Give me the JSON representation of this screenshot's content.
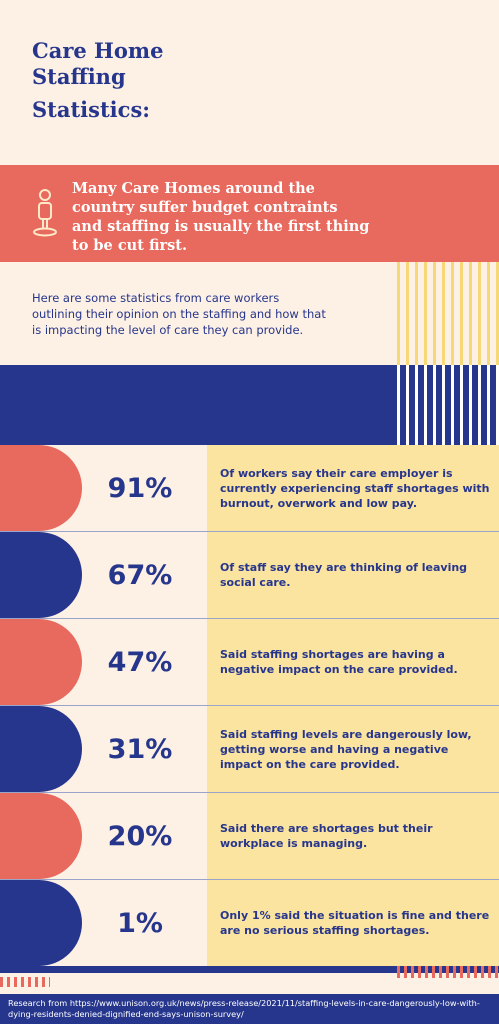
{
  "title": {
    "line1": "Care Home",
    "line2": "Staffing",
    "line3": "Statistics:"
  },
  "banner": {
    "icon": "person-icon",
    "text": "Many Care Homes around the country suffer budget contraints and staffing is usually the first thing to be cut first."
  },
  "intro": "Here are some statistics from care workers outlining their opinion on the staffing and how that is impacting the level of care they can provide.",
  "stats": [
    {
      "pct": "91%",
      "text": "Of workers say their care employer is currently experiencing staff shortages with burnout, overwork and low pay.",
      "color": "#e8695d"
    },
    {
      "pct": "67%",
      "text": "Of staff say they are thinking of leaving social care.",
      "color": "#26368c"
    },
    {
      "pct": "47%",
      "text": "Said staffing shortages are having a negative impact on the care provided.",
      "color": "#e8695d"
    },
    {
      "pct": "31%",
      "text": "Said staffing levels are dangerously low, getting worse and having a negative impact on the care provided.",
      "color": "#26368c"
    },
    {
      "pct": "20%",
      "text": "Said there are shortages but their workplace is managing.",
      "color": "#e8695d"
    },
    {
      "pct": "1%",
      "text": "Only 1% said the situation is fine and there are no serious staffing shortages.",
      "color": "#26368c"
    }
  ],
  "source": "Research from https://www.unison.org.uk/news/press-release/2021/11/staffing-levels-in-care-dangerously-low-with-dying-residents-denied-dignified-end-says-unison-survey/",
  "colors": {
    "navy": "#26368c",
    "coral": "#e8695d",
    "cream": "#fdf0e4",
    "yellow": "#fbe3a0"
  }
}
